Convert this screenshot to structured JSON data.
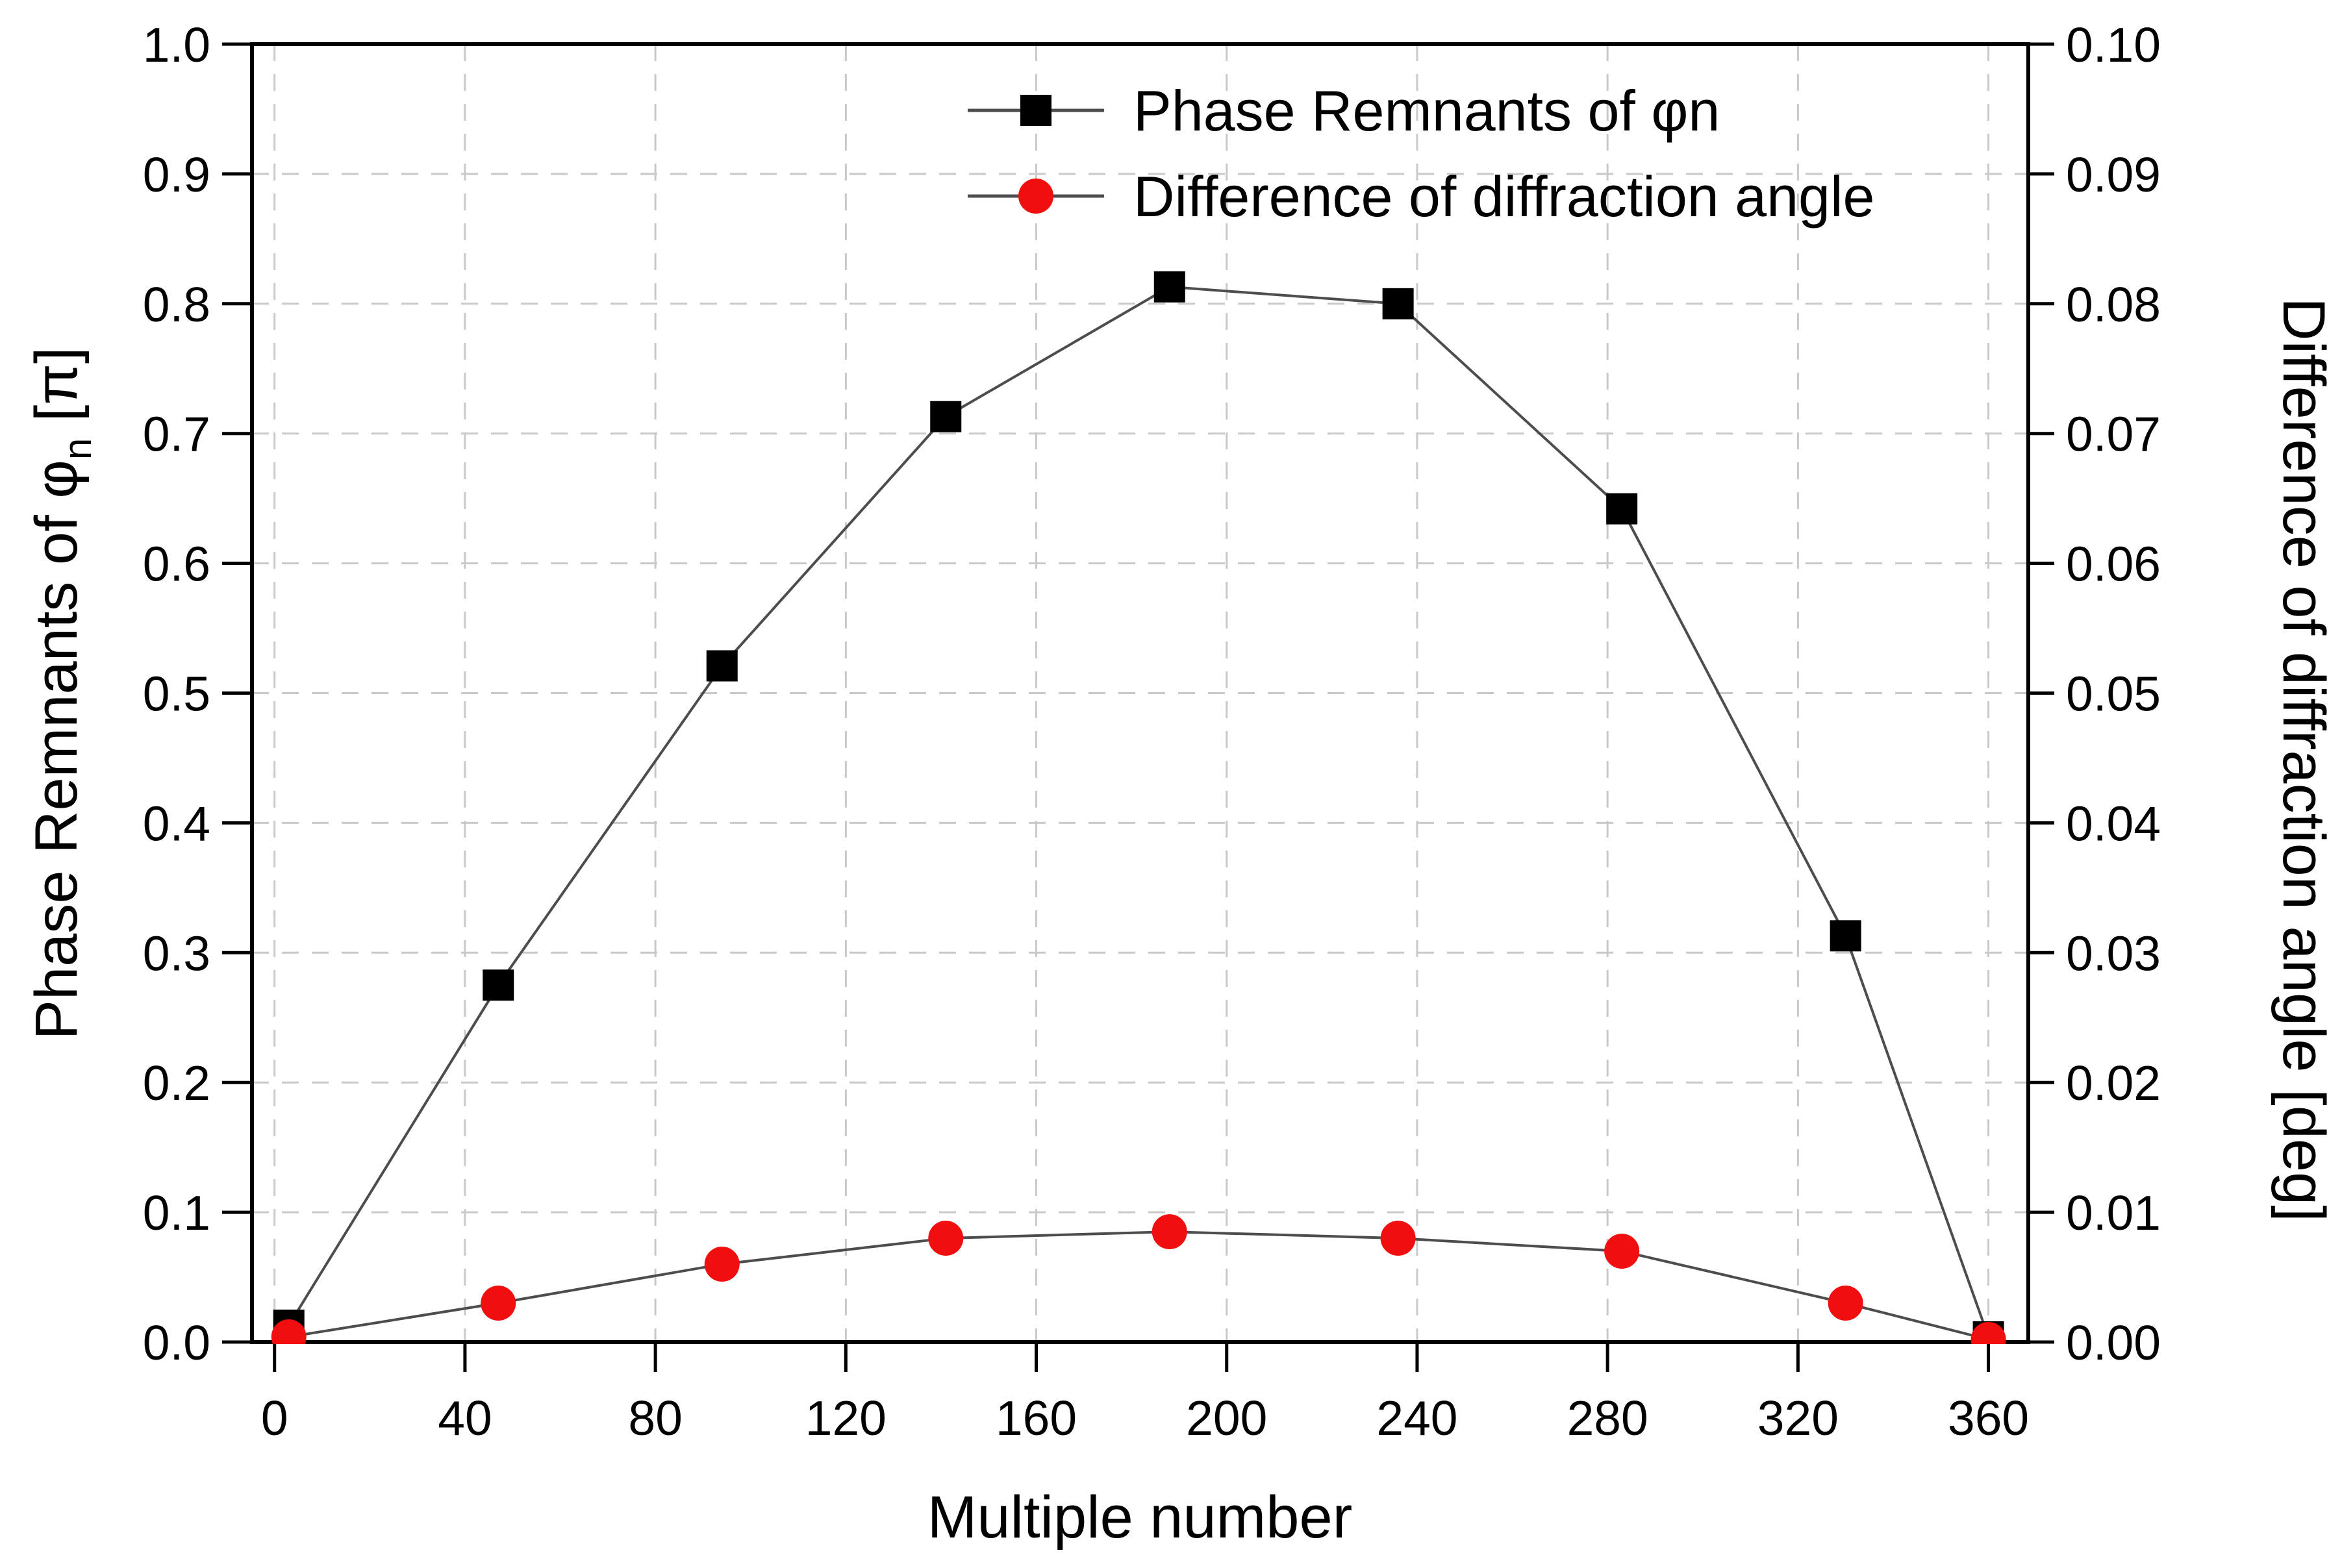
{
  "figure": {
    "background": "#ffffff"
  },
  "chart_data": {
    "type": "line",
    "title": "",
    "grid": true,
    "legend_position": "top-center",
    "x_axis": {
      "label": "Multiple number",
      "min": 0,
      "max": 360,
      "tick_step": 40,
      "tick_labels": [
        "0",
        "40",
        "80",
        "120",
        "160",
        "200",
        "240",
        "280",
        "320",
        "360"
      ]
    },
    "y_left": {
      "label_prefix": "Phase Remnants of φ",
      "label_sub": "n",
      "label_suffix": " [π]",
      "min": 0.0,
      "max": 1.0,
      "tick_step": 0.1,
      "tick_labels": [
        "0.0",
        "0.1",
        "0.2",
        "0.3",
        "0.4",
        "0.5",
        "0.6",
        "0.7",
        "0.8",
        "0.9",
        "1.0"
      ]
    },
    "y_right": {
      "label": "Difference of diffraction angle [deg]",
      "min": 0.0,
      "max": 0.1,
      "tick_step": 0.01,
      "tick_labels": [
        "0.00",
        "0.01",
        "0.02",
        "0.03",
        "0.04",
        "0.05",
        "0.06",
        "0.07",
        "0.08",
        "0.09",
        "0.10"
      ]
    },
    "x": [
      3,
      47,
      94,
      141,
      188,
      236,
      283,
      330,
      360
    ],
    "series": [
      {
        "name": "Phase Remnants of φn",
        "axis": "left",
        "marker": "square",
        "marker_color": "#000000",
        "line_color": "#4d4d4d",
        "values": [
          0.013,
          0.275,
          0.521,
          0.713,
          0.813,
          0.8,
          0.642,
          0.313,
          0.004
        ]
      },
      {
        "name": "Difference of diffraction angle",
        "axis": "right",
        "marker": "circle",
        "marker_color": "#f10e0e",
        "line_color": "#4d4d4d",
        "values": [
          0.0004,
          0.003,
          0.006,
          0.008,
          0.0085,
          0.008,
          0.007,
          0.003,
          0.0002
        ]
      }
    ],
    "colors": {
      "frame": "#000000",
      "gridline": "#c9c9c9",
      "tick": "#000000"
    }
  }
}
